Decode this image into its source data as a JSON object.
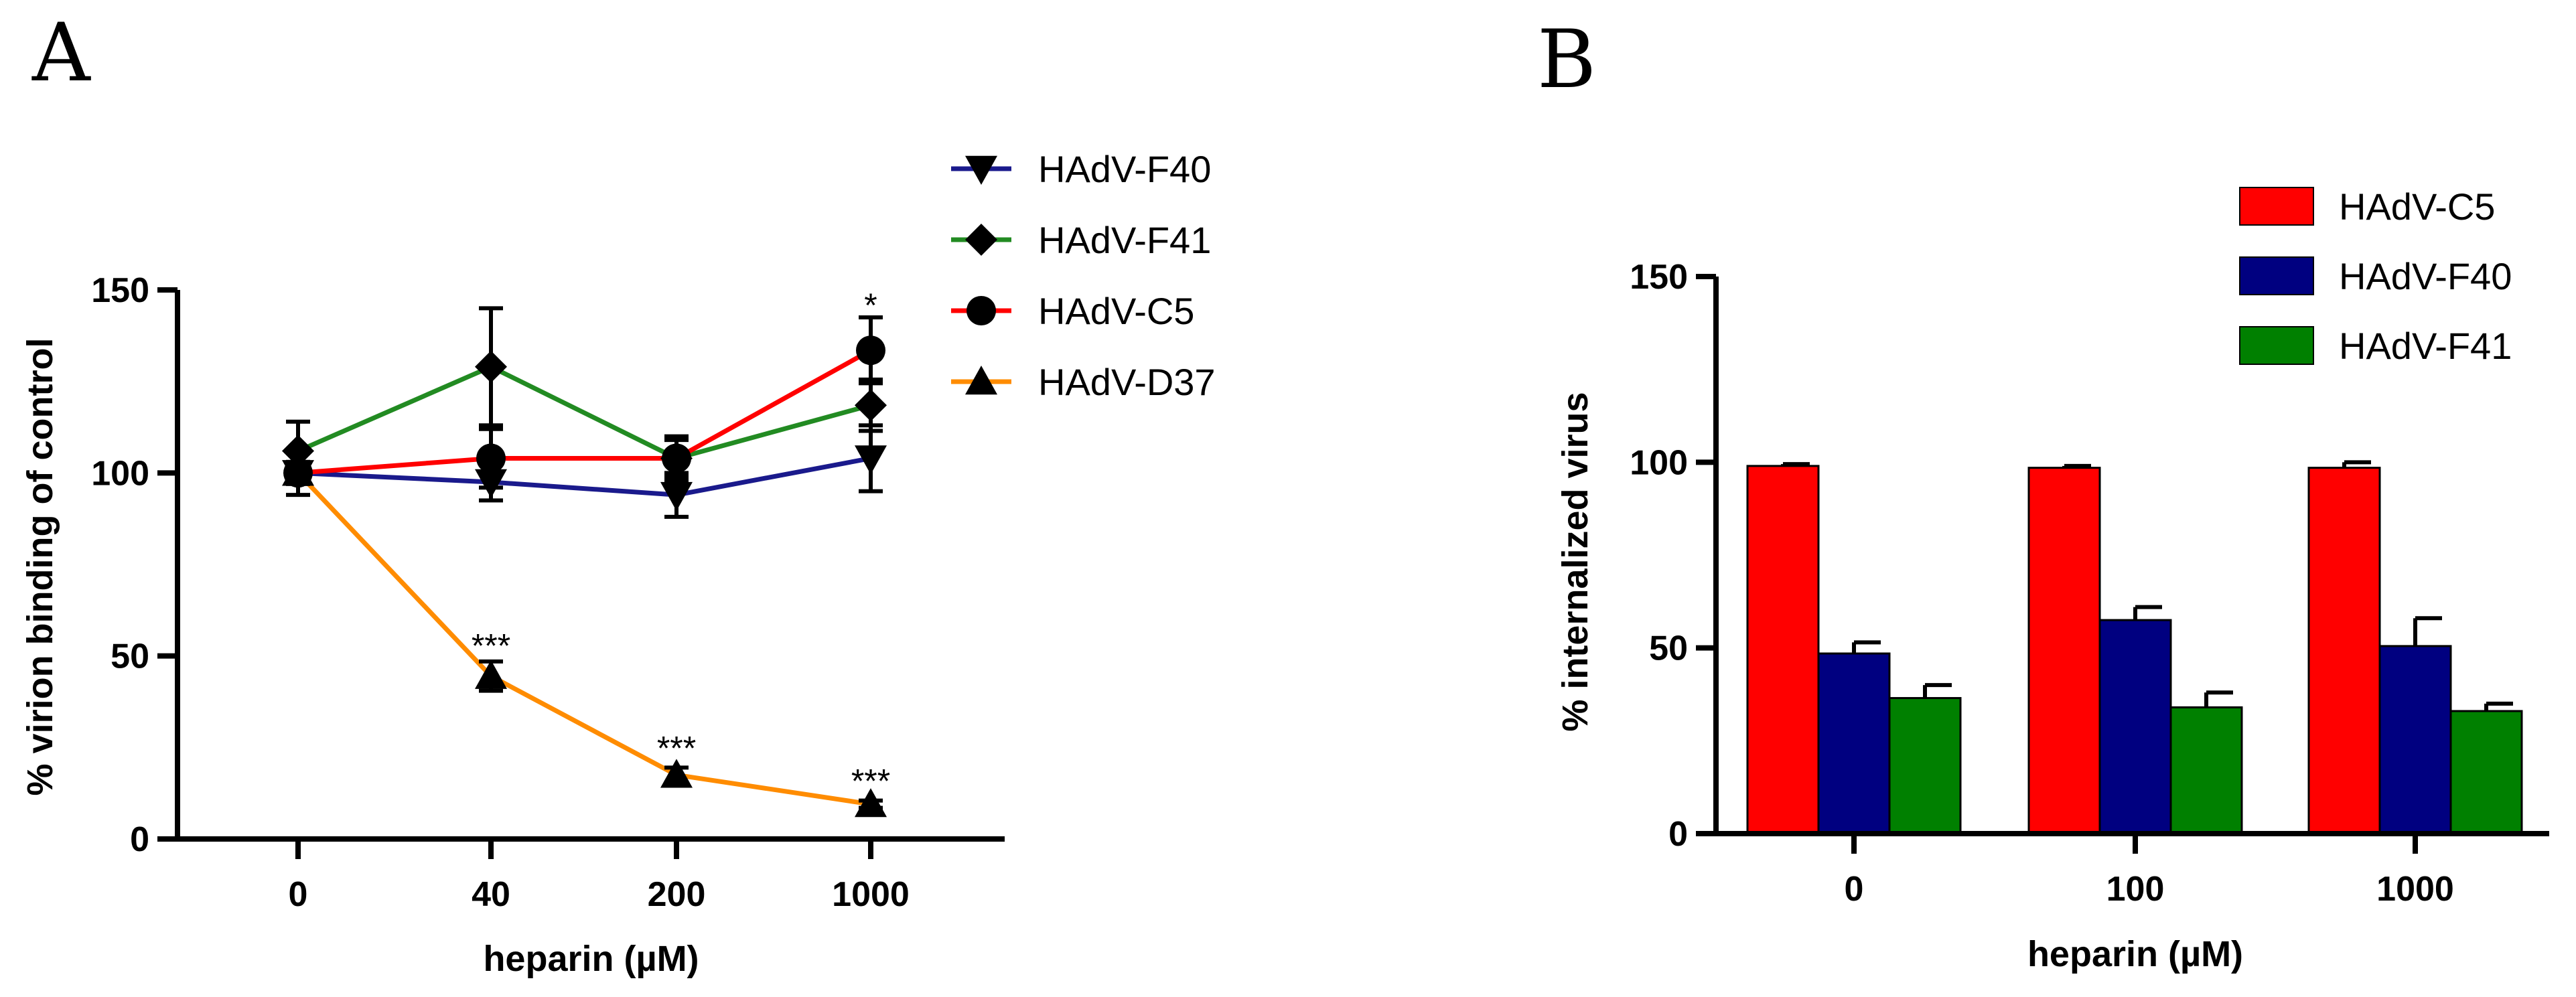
{
  "panels": {
    "a_label": "A",
    "b_label": "B"
  },
  "colors": {
    "red": "#ff0000",
    "navy": "#000080",
    "green": "#008000",
    "orange": "#ff8c00",
    "lineBlue": "#1a1a8c",
    "lineGreen": "#228b22"
  },
  "chart_data": [
    {
      "type": "line",
      "panel": "A",
      "xlabel": "heparin (µM)",
      "ylabel": "% virion binding of control",
      "categories": [
        "0",
        "40",
        "200",
        "1000"
      ],
      "ylim": [
        0,
        150
      ],
      "yticks": [
        "0",
        "50",
        "100",
        "150"
      ],
      "legend_position": "top-right",
      "series": [
        {
          "name": "HAdV-F40",
          "marker": "triangle-down",
          "color": "#1a1a8c",
          "values": [
            100,
            97.5,
            94,
            104
          ],
          "errors": [
            6,
            5,
            6,
            9
          ]
        },
        {
          "name": "HAdV-F41",
          "marker": "diamond",
          "color": "#228b22",
          "values": [
            106,
            129,
            104,
            118.5
          ],
          "errors": [
            8,
            16,
            5,
            7
          ]
        },
        {
          "name": "HAdV-C5",
          "marker": "circle",
          "color": "#ff0000",
          "values": [
            100,
            104,
            104,
            133.5
          ],
          "errors": [
            3,
            8,
            6,
            9
          ]
        },
        {
          "name": "HAdV-D37",
          "marker": "triangle-up",
          "color": "#ff8c00",
          "values": [
            100,
            44.5,
            17.5,
            9.5
          ],
          "errors": [
            3,
            4,
            2,
            1
          ]
        }
      ],
      "annotations": [
        {
          "category": "1000",
          "y": 146,
          "text": "*"
        },
        {
          "category": "40",
          "y": 53,
          "text": "***"
        },
        {
          "category": "200",
          "y": 25,
          "text": "***"
        },
        {
          "category": "1000",
          "y": 16,
          "text": "***"
        }
      ]
    },
    {
      "type": "bar",
      "panel": "B",
      "xlabel": "heparin (µM)",
      "ylabel": "% internalized virus",
      "categories": [
        "0",
        "100",
        "1000"
      ],
      "ylim": [
        0,
        150
      ],
      "yticks": [
        "0",
        "50",
        "100",
        "150"
      ],
      "legend_position": "top-right",
      "series": [
        {
          "name": "HAdV-C5",
          "color": "#ff0000",
          "values": [
            99,
            98.5,
            98.5
          ],
          "errors": [
            0.5,
            0.5,
            1.5
          ]
        },
        {
          "name": "HAdV-F40",
          "color": "#000080",
          "values": [
            48.5,
            57.5,
            50.5
          ],
          "errors": [
            3,
            3.5,
            7.5
          ]
        },
        {
          "name": "HAdV-F41",
          "color": "#008000",
          "values": [
            36.5,
            34,
            33
          ],
          "errors": [
            3.5,
            4,
            2
          ]
        }
      ]
    }
  ]
}
